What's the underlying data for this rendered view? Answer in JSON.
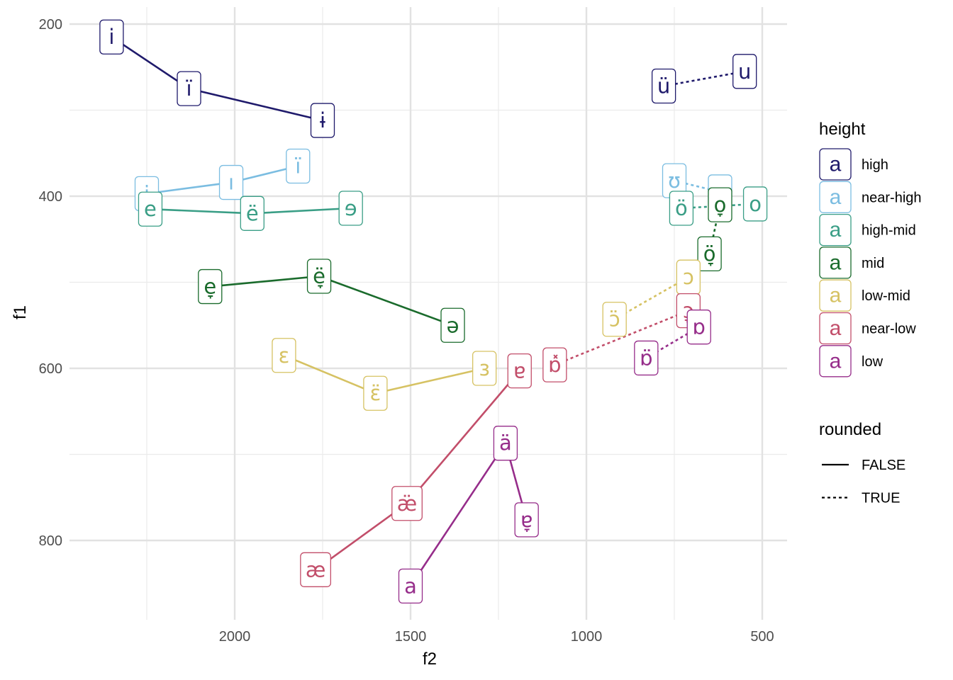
{
  "chart_data": {
    "type": "scatter",
    "xlabel": "f2",
    "ylabel": "f1",
    "x_reversed": true,
    "y_reversed": true,
    "xlim": [
      2390,
      420
    ],
    "ylim": [
      190,
      880
    ],
    "x_ticks": [
      2000,
      1500,
      1000,
      500
    ],
    "x_tick_labels": [
      "2000",
      "1500",
      "1000",
      "500"
    ],
    "x_minor_ticks": [
      2250,
      1750,
      1250,
      750
    ],
    "y_ticks": [
      200,
      400,
      600,
      800
    ],
    "y_tick_labels": [
      "200",
      "400",
      "600",
      "800"
    ],
    "y_minor_ticks": [
      300,
      500,
      700
    ],
    "grid": true,
    "legend_placement": "right",
    "legends": {
      "color": {
        "title": "height",
        "key_glyph": "a",
        "entries": [
          {
            "label": "high",
            "color": "#1f1a6b"
          },
          {
            "label": "near-high",
            "color": "#7bbde1"
          },
          {
            "label": "high-mid",
            "color": "#3a9e86"
          },
          {
            "label": "mid",
            "color": "#1a6b2c"
          },
          {
            "label": "low-mid",
            "color": "#d6c263"
          },
          {
            "label": "near-low",
            "color": "#c24e6a"
          },
          {
            "label": "low",
            "color": "#962d8a"
          }
        ]
      },
      "linetype": {
        "title": "rounded",
        "entries": [
          {
            "label": "FALSE",
            "dash": "solid"
          },
          {
            "label": "TRUE",
            "dash": "dotted"
          }
        ]
      }
    },
    "series": [
      {
        "height": "high",
        "rounded": false,
        "points": [
          {
            "label": "i",
            "f2": 2350,
            "f1": 215
          },
          {
            "label": "ï",
            "f2": 2130,
            "f1": 275
          },
          {
            "label": "ɨ",
            "f2": 1750,
            "f1": 312
          }
        ]
      },
      {
        "height": "high",
        "rounded": true,
        "points": [
          {
            "label": "ü",
            "f2": 780,
            "f1": 272
          },
          {
            "label": "u",
            "f2": 550,
            "f1": 255
          }
        ]
      },
      {
        "height": "near-high",
        "rounded": false,
        "points": [
          {
            "label": "i̞",
            "f2": 2250,
            "f1": 397
          },
          {
            "label": "ı",
            "f2": 2010,
            "f1": 384
          },
          {
            "label": "ï",
            "f2": 1820,
            "f1": 365
          }
        ]
      },
      {
        "height": "near-high",
        "rounded": true,
        "points": [
          {
            "label": "ʊ",
            "f2": 750,
            "f1": 382
          },
          {
            "label": "u̞",
            "f2": 620,
            "f1": 395
          }
        ]
      },
      {
        "height": "high-mid",
        "rounded": false,
        "points": [
          {
            "label": "e",
            "f2": 2240,
            "f1": 415
          },
          {
            "label": "ë",
            "f2": 1950,
            "f1": 420
          },
          {
            "label": "ɘ",
            "f2": 1670,
            "f1": 414
          }
        ]
      },
      {
        "height": "high-mid",
        "rounded": true,
        "points": [
          {
            "label": "ö",
            "f2": 730,
            "f1": 414
          },
          {
            "label": "o",
            "f2": 520,
            "f1": 409
          }
        ]
      },
      {
        "height": "mid",
        "rounded": false,
        "points": [
          {
            "label": "e̞",
            "f2": 2070,
            "f1": 505
          },
          {
            "label": "ë̞",
            "f2": 1760,
            "f1": 493
          },
          {
            "label": "ə",
            "f2": 1380,
            "f1": 550
          }
        ]
      },
      {
        "height": "mid",
        "rounded": true,
        "points": [
          {
            "label": "ö̞",
            "f2": 650,
            "f1": 467
          },
          {
            "label": "o̞",
            "f2": 620,
            "f1": 410
          }
        ]
      },
      {
        "height": "low-mid",
        "rounded": false,
        "points": [
          {
            "label": "ɛ",
            "f2": 1860,
            "f1": 585
          },
          {
            "label": "ɛ̈",
            "f2": 1600,
            "f1": 629
          },
          {
            "label": "ɜ",
            "f2": 1290,
            "f1": 600
          }
        ]
      },
      {
        "height": "low-mid",
        "rounded": true,
        "points": [
          {
            "label": "ɔ̈",
            "f2": 920,
            "f1": 543
          },
          {
            "label": "ɔ",
            "f2": 710,
            "f1": 494
          }
        ]
      },
      {
        "height": "near-low",
        "rounded": false,
        "points": [
          {
            "label": "æ",
            "f2": 1770,
            "f1": 834
          },
          {
            "label": "æ̈",
            "f2": 1510,
            "f1": 757
          },
          {
            "label": "ɐ",
            "f2": 1190,
            "f1": 603
          }
        ]
      },
      {
        "height": "near-low",
        "rounded": true,
        "points": [
          {
            "label": "ɒ̽",
            "f2": 1090,
            "f1": 596
          },
          {
            "label": "ɔ̞",
            "f2": 710,
            "f1": 533
          }
        ]
      },
      {
        "height": "low",
        "rounded": false,
        "points": [
          {
            "label": "a",
            "f2": 1500,
            "f1": 853
          },
          {
            "label": "ä",
            "f2": 1230,
            "f1": 687
          },
          {
            "label": "ɐ̞",
            "f2": 1170,
            "f1": 776
          }
        ]
      },
      {
        "height": "low",
        "rounded": true,
        "points": [
          {
            "label": "ɒ̈",
            "f2": 830,
            "f1": 588
          },
          {
            "label": "ɒ",
            "f2": 680,
            "f1": 552
          }
        ]
      }
    ]
  }
}
